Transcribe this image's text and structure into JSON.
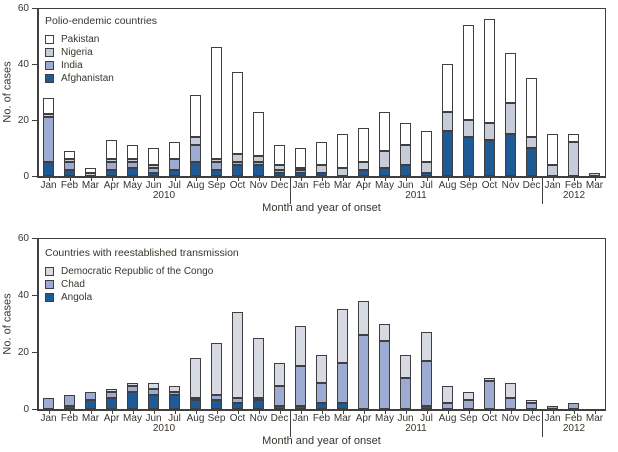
{
  "figure": {
    "text_color": "#3a342c",
    "outline_color": "#3f3f3f",
    "background": "#ffffff"
  },
  "chart_data": [
    {
      "type": "bar",
      "stacked": true,
      "title": "Polio-endemic countries",
      "xlabel": "Month and year of onset",
      "ylabel": "No. of cases",
      "ylim": [
        0,
        60
      ],
      "yticks": [
        0,
        20,
        40,
        60
      ],
      "grid": false,
      "legend_position": "top-left-inside",
      "categories": [
        "Jan",
        "Feb",
        "Mar",
        "Apr",
        "May",
        "Jun",
        "Jul",
        "Aug",
        "Sep",
        "Oct",
        "Nov",
        "Dec",
        "Jan",
        "Feb",
        "Mar",
        "Apr",
        "May",
        "Jun",
        "Jul",
        "Aug",
        "Sep",
        "Oct",
        "Nov",
        "Dec",
        "Jan",
        "Feb",
        "Mar"
      ],
      "years": [
        {
          "label": "2010",
          "start": 0,
          "count": 12
        },
        {
          "label": "2011",
          "start": 12,
          "count": 12
        },
        {
          "label": "2012",
          "start": 24,
          "count": 3
        }
      ],
      "separators_before_index": [
        12,
        24
      ],
      "legend": [
        {
          "label": "Pakistan",
          "color": "#ffffff"
        },
        {
          "label": "Nigeria",
          "color": "#c7ccd9"
        },
        {
          "label": "India",
          "color": "#9dabd2"
        },
        {
          "label": "Afghanistan",
          "color": "#1d5a96"
        }
      ],
      "series": [
        {
          "name": "Afghanistan",
          "color": "#1d5a96",
          "values": [
            5,
            2,
            0,
            2,
            3,
            1,
            2,
            5,
            2,
            4,
            4,
            1,
            1,
            1,
            0,
            2,
            3,
            4,
            1,
            16,
            14,
            13,
            15,
            10,
            0,
            0,
            0
          ]
        },
        {
          "name": "India",
          "color": "#9dabd2",
          "values": [
            16,
            3,
            0,
            3,
            2,
            2,
            4,
            6,
            3,
            1,
            1,
            1,
            1,
            0,
            0,
            0,
            0,
            0,
            0,
            0,
            0,
            0,
            0,
            0,
            0,
            0,
            0
          ]
        },
        {
          "name": "Nigeria",
          "color": "#c7ccd9",
          "values": [
            1,
            1,
            1,
            1,
            1,
            1,
            0,
            3,
            1,
            3,
            2,
            2,
            1,
            3,
            3,
            3,
            6,
            7,
            4,
            7,
            6,
            6,
            11,
            4,
            4,
            12,
            1
          ]
        },
        {
          "name": "Pakistan",
          "color": "#ffffff",
          "values": [
            6,
            3,
            2,
            7,
            5,
            6,
            6,
            15,
            40,
            29,
            16,
            7,
            7,
            8,
            12,
            12,
            14,
            8,
            11,
            17,
            34,
            37,
            18,
            21,
            11,
            3,
            0
          ]
        }
      ]
    },
    {
      "type": "bar",
      "stacked": true,
      "title": "Countries with reestablished transmission",
      "xlabel": "Month and year of onset",
      "ylabel": "No. of cases",
      "ylim": [
        0,
        60
      ],
      "yticks": [
        0,
        20,
        40,
        60
      ],
      "grid": false,
      "legend_position": "top-left-inside",
      "categories": [
        "Jan",
        "Feb",
        "Mar",
        "Apr",
        "May",
        "Jun",
        "Jul",
        "Aug",
        "Sep",
        "Oct",
        "Nov",
        "Dec",
        "Jan",
        "Feb",
        "Mar",
        "Apr",
        "May",
        "Jun",
        "Jul",
        "Aug",
        "Sep",
        "Oct",
        "Nov",
        "Dec",
        "Jan",
        "Feb",
        "Mar"
      ],
      "years": [
        {
          "label": "2010",
          "start": 0,
          "count": 12
        },
        {
          "label": "2011",
          "start": 12,
          "count": 12
        },
        {
          "label": "2012",
          "start": 24,
          "count": 3
        }
      ],
      "separators_before_index": [
        12,
        24
      ],
      "legend": [
        {
          "label": "Democratic Republic of the Congo",
          "color": "#d8dae3"
        },
        {
          "label": "Chad",
          "color": "#9dabd2"
        },
        {
          "label": "Angola",
          "color": "#1d5a96"
        }
      ],
      "series": [
        {
          "name": "Angola",
          "color": "#1d5a96",
          "values": [
            0,
            1,
            3,
            4,
            6,
            5,
            5,
            3,
            3,
            2,
            3,
            1,
            1,
            2,
            2,
            0,
            0,
            0,
            1,
            0,
            0,
            0,
            0,
            0,
            0,
            0,
            0
          ]
        },
        {
          "name": "Chad",
          "color": "#9dabd2",
          "values": [
            4,
            4,
            3,
            2,
            2,
            2,
            1,
            1,
            2,
            2,
            1,
            7,
            14,
            7,
            14,
            26,
            24,
            11,
            16,
            2,
            3,
            10,
            4,
            2,
            1,
            2,
            0
          ]
        },
        {
          "name": "Democratic Republic of the Congo",
          "color": "#d8dae3",
          "values": [
            0,
            0,
            0,
            1,
            1,
            2,
            2,
            14,
            18,
            30,
            21,
            8,
            14,
            10,
            19,
            12,
            6,
            8,
            10,
            6,
            3,
            1,
            5,
            1,
            0,
            0,
            0
          ]
        }
      ]
    }
  ]
}
